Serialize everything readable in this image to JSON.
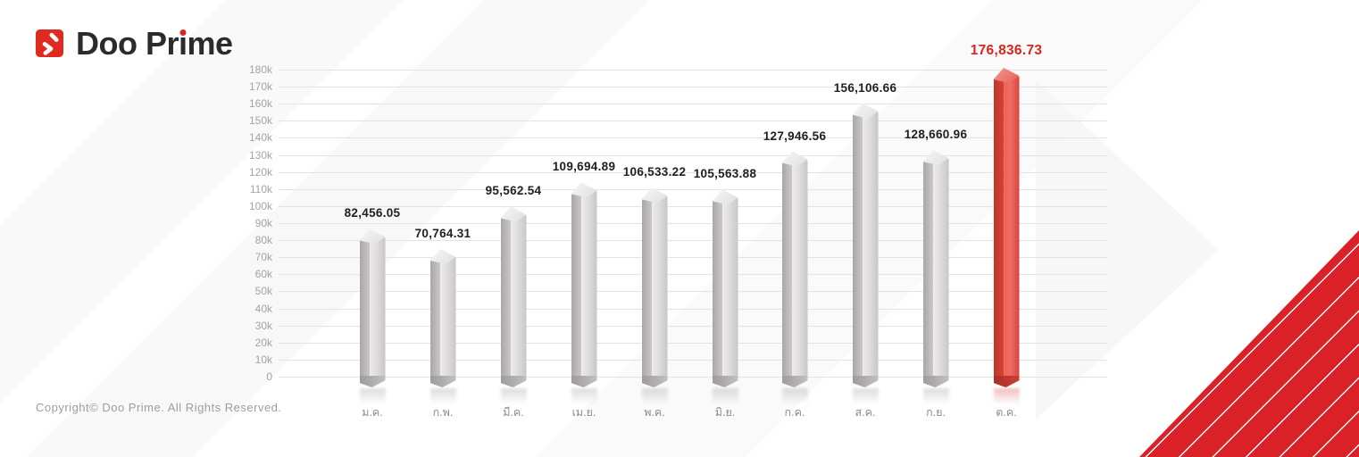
{
  "logo": {
    "brand": "Doo Prime",
    "parts": {
      "pre": "Doo Pr",
      "i_base": "ı",
      "post": "me"
    }
  },
  "footer": {
    "copyright": "Copyright© Doo Prime. All Rights Reserved."
  },
  "colors": {
    "accent_red": "#d6261f",
    "triangle_red": "#da2128",
    "bar_gray_front": "#dedcdc",
    "bar_gray_side": "#a9a7a7",
    "gridline": "#e3e3e3",
    "axis_text": "#a3a3a3"
  },
  "chart_data": {
    "type": "bar",
    "title": "",
    "xlabel": "",
    "ylabel": "",
    "categories": [
      "ม.ค.",
      "ก.พ.",
      "มี.ค.",
      "เม.ย.",
      "พ.ค.",
      "มิ.ย.",
      "ก.ค.",
      "ส.ค.",
      "ก.ย.",
      "ต.ค."
    ],
    "values": [
      82456.05,
      70764.31,
      95562.54,
      109694.89,
      106533.22,
      105563.88,
      127946.56,
      156106.66,
      128660.96,
      176836.73
    ],
    "data_labels": [
      "82,456.05",
      "70,764.31",
      "95,562.54",
      "109,694.89",
      "106,533.22",
      "105,563.88",
      "127,946.56",
      "156,106.66",
      "128,660.96",
      "176,836.73"
    ],
    "highlight_index": 9,
    "ylim": [
      0,
      180000
    ],
    "ytick_interval": 10000,
    "ytick_labels_top_to_bottom": [
      "180k",
      "170k",
      "160k",
      "150k",
      "140k",
      "130k",
      "120k",
      "110k",
      "100k",
      "90k",
      "80k",
      "70k",
      "60k",
      "50k",
      "40k",
      "30k",
      "20k",
      "10k",
      "0"
    ],
    "grid": true,
    "legend": false
  }
}
